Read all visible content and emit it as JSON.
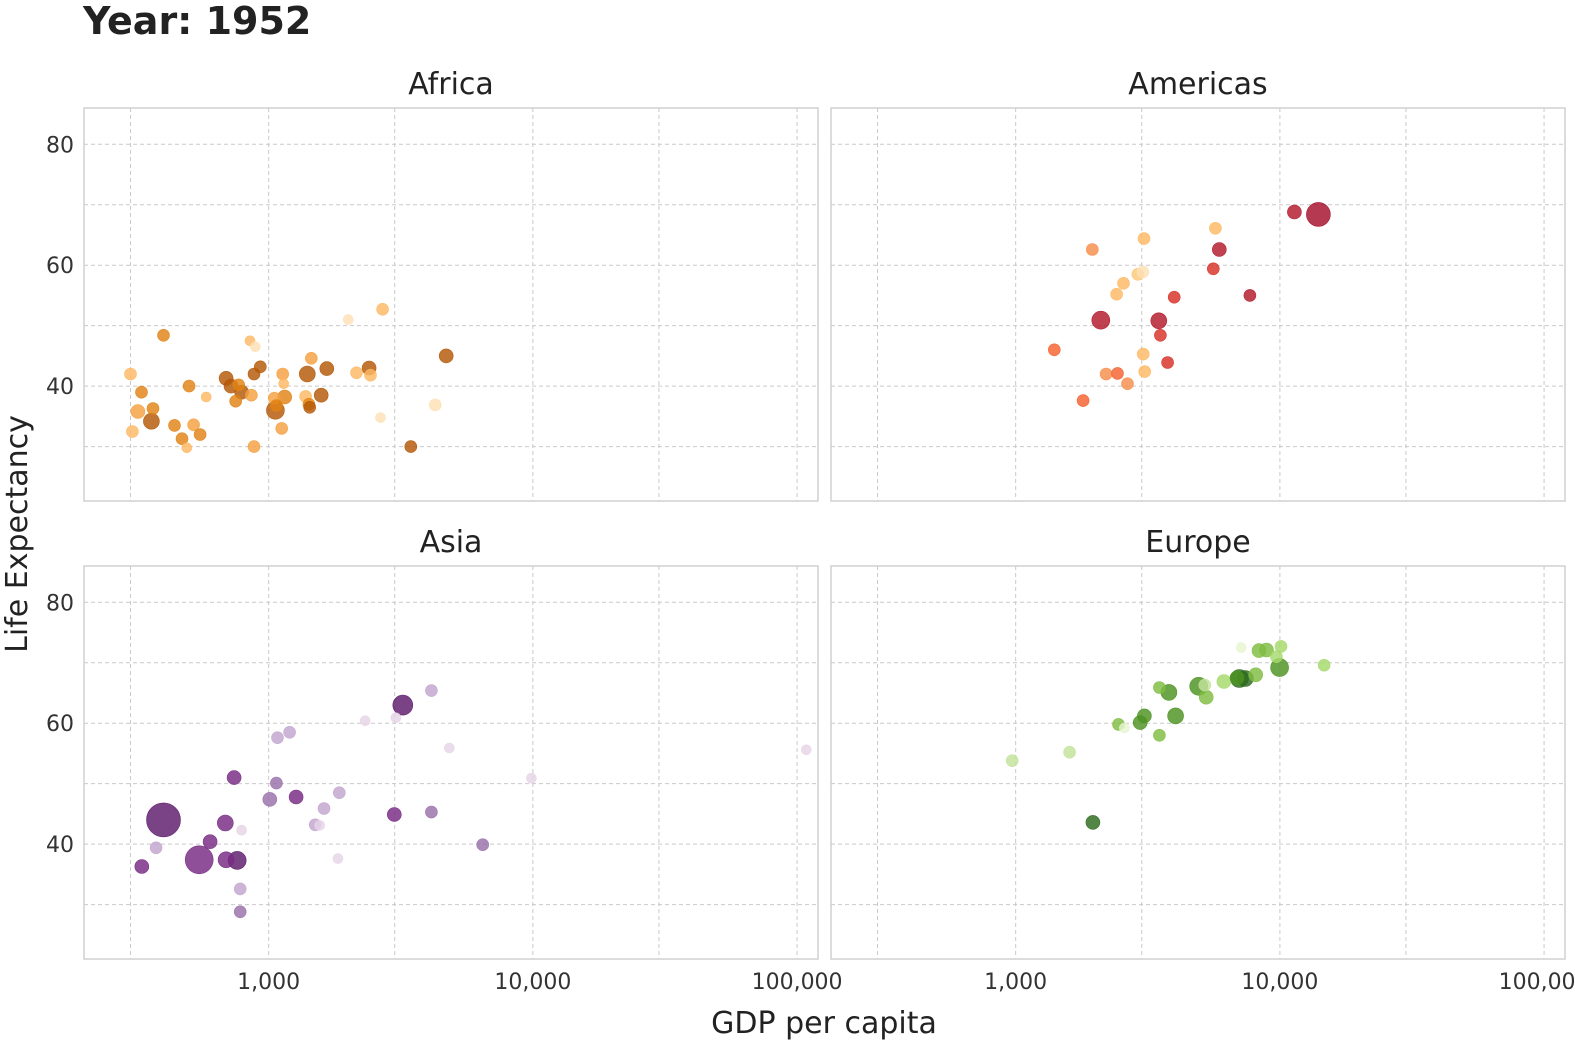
{
  "chart_data": {
    "type": "scatter",
    "title": "Year: 1952",
    "xlabel": "GDP per capita",
    "ylabel": "Life Expectancy",
    "x_scale": "log10",
    "xlim": [
      200,
      120000
    ],
    "ylim": [
      21,
      86
    ],
    "x_ticks": [
      {
        "value": 1000,
        "label": "1,000"
      },
      {
        "value": 10000,
        "label": "10,000"
      },
      {
        "value": 100000,
        "label": "100,000"
      }
    ],
    "x_minor_ticks": [
      300,
      3000,
      30000
    ],
    "y_ticks": [
      {
        "value": 40,
        "label": "40"
      },
      {
        "value": 60,
        "label": "60"
      },
      {
        "value": 80,
        "label": "80"
      }
    ],
    "y_minor_ticks": [
      30,
      50,
      70
    ],
    "grid": true,
    "panels": [
      {
        "name": "Africa",
        "color": "#b8621b",
        "points": [
          {
            "x": 300,
            "y": 42,
            "r": 6,
            "c": "#fdb863"
          },
          {
            "x": 305,
            "y": 32.5,
            "r": 6,
            "c": "#fdb863"
          },
          {
            "x": 320,
            "y": 35.8,
            "r": 7,
            "c": "#f4a040"
          },
          {
            "x": 330,
            "y": 39,
            "r": 6,
            "c": "#e08214"
          },
          {
            "x": 360,
            "y": 34.2,
            "r": 8,
            "c": "#b35806"
          },
          {
            "x": 365,
            "y": 36.3,
            "r": 6,
            "c": "#e08214"
          },
          {
            "x": 400,
            "y": 48.4,
            "r": 6,
            "c": "#e08214"
          },
          {
            "x": 440,
            "y": 33.5,
            "r": 6,
            "c": "#e08214"
          },
          {
            "x": 470,
            "y": 31.3,
            "r": 6,
            "c": "#e08214"
          },
          {
            "x": 490,
            "y": 29.8,
            "r": 5,
            "c": "#fdb863"
          },
          {
            "x": 500,
            "y": 40,
            "r": 6,
            "c": "#e08214"
          },
          {
            "x": 520,
            "y": 33.6,
            "r": 6,
            "c": "#f4a040"
          },
          {
            "x": 550,
            "y": 32,
            "r": 6,
            "c": "#e08214"
          },
          {
            "x": 580,
            "y": 38.2,
            "r": 5,
            "c": "#fdb863"
          },
          {
            "x": 690,
            "y": 41.3,
            "r": 7,
            "c": "#b35806"
          },
          {
            "x": 720,
            "y": 40,
            "r": 7,
            "c": "#b35806"
          },
          {
            "x": 750,
            "y": 37.5,
            "r": 6,
            "c": "#e08214"
          },
          {
            "x": 770,
            "y": 40.2,
            "r": 6,
            "c": "#e08214"
          },
          {
            "x": 790,
            "y": 39,
            "r": 7,
            "c": "#b35806"
          },
          {
            "x": 850,
            "y": 47.5,
            "r": 5,
            "c": "#fdb863"
          },
          {
            "x": 860,
            "y": 38.5,
            "r": 6,
            "c": "#f4a040"
          },
          {
            "x": 880,
            "y": 42,
            "r": 6,
            "c": "#b35806"
          },
          {
            "x": 890,
            "y": 46.5,
            "r": 5,
            "c": "#fee0b6"
          },
          {
            "x": 880,
            "y": 30,
            "r": 6,
            "c": "#f4a040"
          },
          {
            "x": 930,
            "y": 43.2,
            "r": 6,
            "c": "#b35806"
          },
          {
            "x": 1050,
            "y": 38,
            "r": 6,
            "c": "#f4a040"
          },
          {
            "x": 1060,
            "y": 36,
            "r": 9,
            "c": "#b35806"
          },
          {
            "x": 1070,
            "y": 36.8,
            "r": 6,
            "c": "#e08214"
          },
          {
            "x": 1120,
            "y": 33,
            "r": 6,
            "c": "#f4a040"
          },
          {
            "x": 1130,
            "y": 42,
            "r": 6,
            "c": "#f4a040"
          },
          {
            "x": 1140,
            "y": 40.4,
            "r": 5,
            "c": "#fdb863"
          },
          {
            "x": 1150,
            "y": 38.2,
            "r": 7,
            "c": "#e08214"
          },
          {
            "x": 1380,
            "y": 38.3,
            "r": 6,
            "c": "#fdb863"
          },
          {
            "x": 1400,
            "y": 42,
            "r": 8,
            "c": "#b35806"
          },
          {
            "x": 1420,
            "y": 37,
            "r": 6,
            "c": "#e08214"
          },
          {
            "x": 1430,
            "y": 36.5,
            "r": 6,
            "c": "#b35806"
          },
          {
            "x": 1450,
            "y": 44.6,
            "r": 6,
            "c": "#f4a040"
          },
          {
            "x": 1580,
            "y": 38.5,
            "r": 7,
            "c": "#b35806"
          },
          {
            "x": 1660,
            "y": 42.9,
            "r": 7,
            "c": "#b35806"
          },
          {
            "x": 2000,
            "y": 51,
            "r": 5,
            "c": "#fee0b6"
          },
          {
            "x": 2150,
            "y": 42.2,
            "r": 6,
            "c": "#fdb863"
          },
          {
            "x": 2400,
            "y": 43,
            "r": 7,
            "c": "#b35806"
          },
          {
            "x": 2430,
            "y": 41.8,
            "r": 6,
            "c": "#fdb863"
          },
          {
            "x": 2650,
            "y": 34.8,
            "r": 5,
            "c": "#fee0b6"
          },
          {
            "x": 2700,
            "y": 52.7,
            "r": 6,
            "c": "#fdb863"
          },
          {
            "x": 3450,
            "y": 30,
            "r": 6,
            "c": "#b35806"
          },
          {
            "x": 4270,
            "y": 36.9,
            "r": 6,
            "c": "#fee0b6"
          },
          {
            "x": 4700,
            "y": 45,
            "r": 7,
            "c": "#b35806"
          }
        ]
      },
      {
        "name": "Americas",
        "color": "#b2182b",
        "points": [
          {
            "x": 1400,
            "y": 46,
            "r": 6,
            "c": "#f4602e"
          },
          {
            "x": 1800,
            "y": 37.6,
            "r": 6,
            "c": "#f4602e"
          },
          {
            "x": 1950,
            "y": 62.6,
            "r": 6,
            "c": "#f68d4a"
          },
          {
            "x": 2100,
            "y": 50.9,
            "r": 9,
            "c": "#b2182b"
          },
          {
            "x": 2200,
            "y": 42,
            "r": 6,
            "c": "#f68d4a"
          },
          {
            "x": 2410,
            "y": 55.2,
            "r": 6,
            "c": "#fdb863"
          },
          {
            "x": 2430,
            "y": 42.1,
            "r": 6,
            "c": "#f4602e"
          },
          {
            "x": 2560,
            "y": 57,
            "r": 6,
            "c": "#fdb863"
          },
          {
            "x": 2650,
            "y": 40.4,
            "r": 6,
            "c": "#f68d4a"
          },
          {
            "x": 2900,
            "y": 58.5,
            "r": 6,
            "c": "#fdc977"
          },
          {
            "x": 3030,
            "y": 58.9,
            "r": 6,
            "c": "#fee0b6"
          },
          {
            "x": 3040,
            "y": 45.3,
            "r": 6,
            "c": "#fdb863"
          },
          {
            "x": 3060,
            "y": 64.4,
            "r": 6,
            "c": "#fdb863"
          },
          {
            "x": 3080,
            "y": 42.4,
            "r": 6,
            "c": "#fdb863"
          },
          {
            "x": 3480,
            "y": 50.8,
            "r": 8,
            "c": "#b2182b"
          },
          {
            "x": 3530,
            "y": 48.4,
            "r": 6,
            "c": "#d73027"
          },
          {
            "x": 3760,
            "y": 43.9,
            "r": 6,
            "c": "#d73027"
          },
          {
            "x": 3980,
            "y": 54.7,
            "r": 6,
            "c": "#d73027"
          },
          {
            "x": 5600,
            "y": 59.4,
            "r": 6,
            "c": "#d73027"
          },
          {
            "x": 5700,
            "y": 66.1,
            "r": 6,
            "c": "#fdb863"
          },
          {
            "x": 5900,
            "y": 62.6,
            "r": 7,
            "c": "#b2182b"
          },
          {
            "x": 7700,
            "y": 55,
            "r": 6,
            "c": "#b2182b"
          },
          {
            "x": 11350,
            "y": 68.8,
            "r": 7,
            "c": "#b2182b"
          },
          {
            "x": 13990,
            "y": 68.4,
            "r": 12,
            "c": "#a50f2b"
          }
        ]
      },
      {
        "name": "Asia",
        "color": "#762a83",
        "points": [
          {
            "x": 331,
            "y": 36.3,
            "r": 7,
            "c": "#762a83"
          },
          {
            "x": 375,
            "y": 39.4,
            "r": 6,
            "c": "#c2a5cf"
          },
          {
            "x": 400,
            "y": 44,
            "r": 17,
            "c": "#5c1a6b"
          },
          {
            "x": 546,
            "y": 37.4,
            "r": 14,
            "c": "#762a83"
          },
          {
            "x": 600,
            "y": 40.4,
            "r": 7,
            "c": "#762a83"
          },
          {
            "x": 685,
            "y": 43.5,
            "r": 8,
            "c": "#762a83"
          },
          {
            "x": 690,
            "y": 37.4,
            "r": 8,
            "c": "#762a83"
          },
          {
            "x": 760,
            "y": 37.3,
            "r": 9,
            "c": "#5c1a6b"
          },
          {
            "x": 740,
            "y": 51,
            "r": 7,
            "c": "#762a83"
          },
          {
            "x": 780,
            "y": 28.8,
            "r": 6,
            "c": "#9970ab"
          },
          {
            "x": 780,
            "y": 32.6,
            "r": 6,
            "c": "#c2a5cf"
          },
          {
            "x": 790,
            "y": 42.3,
            "r": 5,
            "c": "#e7d4e8"
          },
          {
            "x": 1010,
            "y": 47.4,
            "r": 7,
            "c": "#9970ab"
          },
          {
            "x": 1070,
            "y": 50.1,
            "r": 6,
            "c": "#9970ab"
          },
          {
            "x": 1080,
            "y": 57.6,
            "r": 6,
            "c": "#c2a5cf"
          },
          {
            "x": 1200,
            "y": 58.5,
            "r": 6,
            "c": "#c2a5cf"
          },
          {
            "x": 1270,
            "y": 47.8,
            "r": 7,
            "c": "#762a83"
          },
          {
            "x": 1500,
            "y": 43.2,
            "r": 6,
            "c": "#c2a5cf"
          },
          {
            "x": 1560,
            "y": 43.1,
            "r": 5,
            "c": "#e7d4e8"
          },
          {
            "x": 1620,
            "y": 45.9,
            "r": 6,
            "c": "#c2a5cf"
          },
          {
            "x": 1830,
            "y": 37.6,
            "r": 5,
            "c": "#e7d4e8"
          },
          {
            "x": 1850,
            "y": 48.5,
            "r": 6,
            "c": "#c2a5cf"
          },
          {
            "x": 2320,
            "y": 60.4,
            "r": 5,
            "c": "#e7d4e8"
          },
          {
            "x": 2990,
            "y": 44.9,
            "r": 7,
            "c": "#762a83"
          },
          {
            "x": 3030,
            "y": 60.9,
            "r": 5,
            "c": "#e7d4e8"
          },
          {
            "x": 3220,
            "y": 63,
            "r": 10,
            "c": "#5c1a6b"
          },
          {
            "x": 4130,
            "y": 45.3,
            "r": 6,
            "c": "#9970ab"
          },
          {
            "x": 4130,
            "y": 65.4,
            "r": 6,
            "c": "#c2a5cf"
          },
          {
            "x": 4830,
            "y": 55.9,
            "r": 5,
            "c": "#e7d4e8"
          },
          {
            "x": 6460,
            "y": 39.9,
            "r": 6,
            "c": "#9970ab"
          },
          {
            "x": 9870,
            "y": 50.9,
            "r": 5,
            "c": "#e7d4e8"
          },
          {
            "x": 108380,
            "y": 55.6,
            "r": 5,
            "c": "#e7d4e8"
          }
        ]
      },
      {
        "name": "Europe",
        "color": "#1b7837",
        "points": [
          {
            "x": 970,
            "y": 53.8,
            "r": 6,
            "c": "#c2e29b"
          },
          {
            "x": 1600,
            "y": 55.2,
            "r": 6,
            "c": "#c2e29b"
          },
          {
            "x": 1960,
            "y": 43.6,
            "r": 7,
            "c": "#2d6a1f"
          },
          {
            "x": 2450,
            "y": 59.8,
            "r": 6,
            "c": "#7fbc41"
          },
          {
            "x": 2580,
            "y": 59.2,
            "r": 5,
            "c": "#e6f5d0"
          },
          {
            "x": 2960,
            "y": 60.1,
            "r": 7,
            "c": "#4d9221"
          },
          {
            "x": 3070,
            "y": 61.2,
            "r": 7,
            "c": "#4d9221"
          },
          {
            "x": 3500,
            "y": 58,
            "r": 6,
            "c": "#7fbc41"
          },
          {
            "x": 3500,
            "y": 65.9,
            "r": 6,
            "c": "#7fbc41"
          },
          {
            "x": 3800,
            "y": 65.1,
            "r": 8,
            "c": "#4d9221"
          },
          {
            "x": 4030,
            "y": 61.2,
            "r": 8,
            "c": "#4d9221"
          },
          {
            "x": 4930,
            "y": 66.1,
            "r": 9,
            "c": "#4d9221"
          },
          {
            "x": 5200,
            "y": 66.3,
            "r": 6,
            "c": "#c2e29b"
          },
          {
            "x": 5260,
            "y": 64.3,
            "r": 7,
            "c": "#7fbc41"
          },
          {
            "x": 6140,
            "y": 66.9,
            "r": 7,
            "c": "#a6d96a"
          },
          {
            "x": 6880,
            "y": 67.5,
            "r": 7,
            "c": "#4d9221"
          },
          {
            "x": 7030,
            "y": 67.4,
            "r": 9,
            "c": "#2d6a1f"
          },
          {
            "x": 7140,
            "y": 72.5,
            "r": 5,
            "c": "#e6f5d0"
          },
          {
            "x": 7400,
            "y": 67.4,
            "r": 8,
            "c": "#2d6a1f"
          },
          {
            "x": 8100,
            "y": 68,
            "r": 7,
            "c": "#7fbc41"
          },
          {
            "x": 8340,
            "y": 72,
            "r": 7,
            "c": "#7fbc41"
          },
          {
            "x": 8900,
            "y": 72.1,
            "r": 7,
            "c": "#7fbc41"
          },
          {
            "x": 9700,
            "y": 71,
            "r": 6,
            "c": "#a6d96a"
          },
          {
            "x": 9980,
            "y": 69.2,
            "r": 9,
            "c": "#4d9221"
          },
          {
            "x": 10100,
            "y": 72.7,
            "r": 6,
            "c": "#a6d96a"
          },
          {
            "x": 14700,
            "y": 69.6,
            "r": 6,
            "c": "#a6d96a"
          }
        ]
      }
    ]
  }
}
